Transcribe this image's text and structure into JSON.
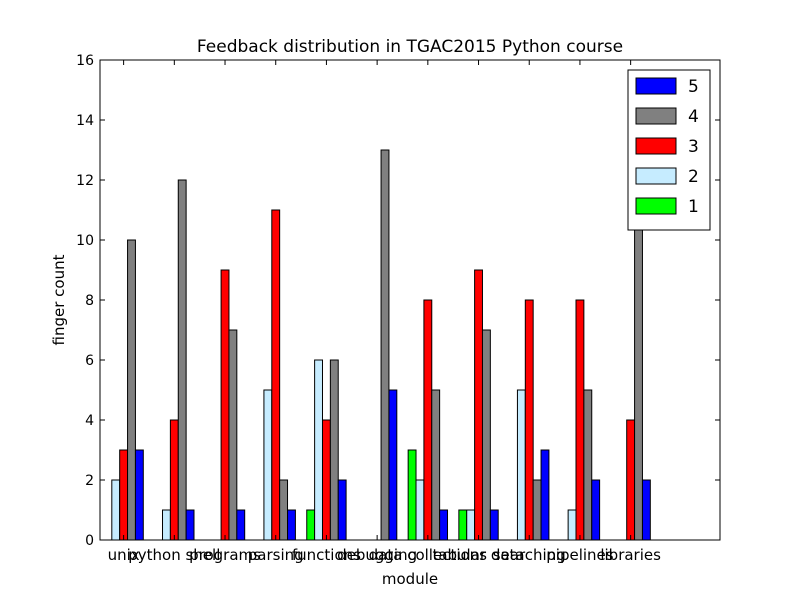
{
  "chart_data": {
    "type": "bar",
    "title": "Feedback distribution in TGAC2015 Python course",
    "xlabel": "module",
    "ylabel": "finger count",
    "ylim": [
      0,
      16
    ],
    "yticks": [
      0,
      2,
      4,
      6,
      8,
      10,
      12,
      14,
      16
    ],
    "grid": false,
    "legend_position": "top-right",
    "categories": [
      "unix",
      "python shell",
      "programs",
      "parsing",
      "functions",
      "debugging",
      "data collections",
      "tabular data",
      "searching",
      "pipelines",
      "libraries"
    ],
    "series": [
      {
        "name": "1",
        "color": "#00ff00",
        "values": [
          0,
          0,
          0,
          0,
          1,
          0,
          3,
          1,
          0,
          0,
          0
        ]
      },
      {
        "name": "2",
        "color": "#c6ecff",
        "values": [
          2,
          1,
          0,
          5,
          6,
          0,
          2,
          1,
          5,
          1,
          0
        ]
      },
      {
        "name": "3",
        "color": "#ff0000",
        "values": [
          3,
          4,
          9,
          11,
          4,
          0,
          8,
          9,
          8,
          8,
          4
        ]
      },
      {
        "name": "4",
        "color": "#808080",
        "values": [
          10,
          12,
          7,
          2,
          6,
          13,
          5,
          7,
          2,
          5,
          11
        ]
      },
      {
        "name": "5",
        "color": "#0000ff",
        "values": [
          3,
          1,
          1,
          1,
          2,
          5,
          1,
          1,
          3,
          2,
          2
        ]
      }
    ],
    "legend_order": [
      "5",
      "4",
      "3",
      "2",
      "1"
    ]
  }
}
